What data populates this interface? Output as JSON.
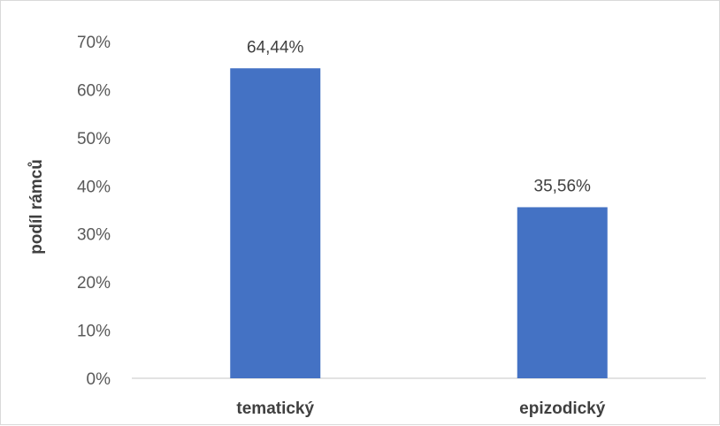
{
  "chart_data": {
    "type": "bar",
    "categories": [
      "tematický",
      "epizodický"
    ],
    "values": [
      64.44,
      35.56
    ],
    "data_labels": [
      "64,44%",
      "35,56%"
    ],
    "title": "",
    "xlabel": "",
    "ylabel": "podíl rámců",
    "ylim": [
      0,
      70
    ],
    "yticks": [
      0,
      10,
      20,
      30,
      40,
      50,
      60,
      70
    ],
    "ytick_labels": [
      "0%",
      "10%",
      "20%",
      "30%",
      "40%",
      "50%",
      "60%",
      "70%"
    ],
    "grid": false,
    "legend": "none",
    "bar_color": "#4472c4"
  }
}
